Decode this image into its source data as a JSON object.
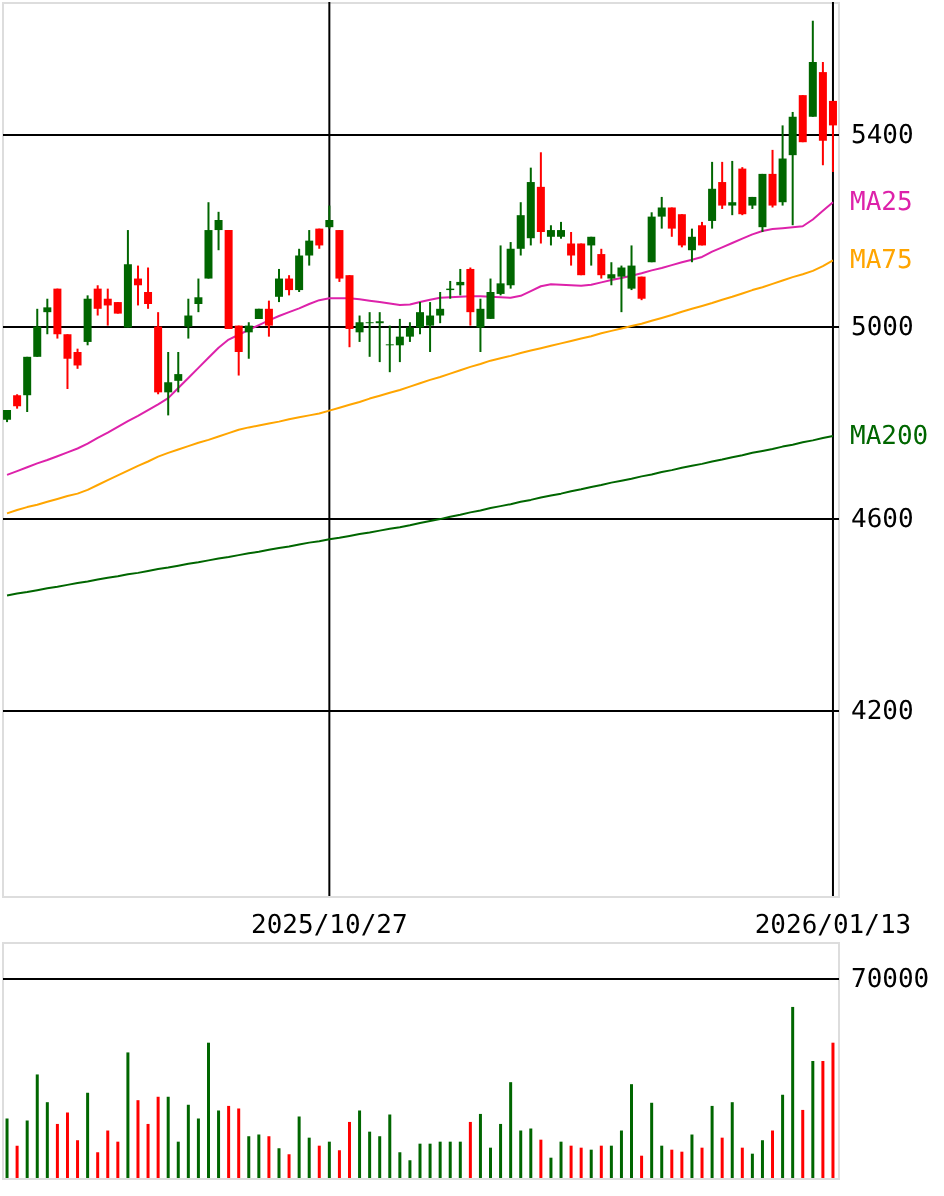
{
  "chart_data": [
    {
      "type": "candlestick",
      "categories": [
        null,
        null,
        null,
        null,
        null,
        null,
        null,
        null,
        null,
        null,
        null,
        null,
        null,
        null,
        null,
        null,
        null,
        null,
        null,
        null,
        null,
        null,
        null,
        null,
        null,
        null,
        null,
        null,
        null,
        null,
        null,
        null,
        "2025/10/27",
        null,
        null,
        null,
        null,
        null,
        null,
        null,
        null,
        null,
        null,
        null,
        null,
        null,
        null,
        null,
        null,
        null,
        null,
        null,
        null,
        null,
        null,
        null,
        null,
        null,
        null,
        null,
        null,
        null,
        null,
        null,
        null,
        null,
        null,
        null,
        null,
        null,
        null,
        null,
        null,
        null,
        null,
        null,
        null,
        null,
        null,
        null,
        null,
        null,
        "2026/01/13"
      ],
      "ohlc": [
        [
          4805,
          4825,
          4800,
          4825
        ],
        [
          4856,
          4858,
          4828,
          4833
        ],
        [
          4856,
          4936,
          4821,
          4936
        ],
        [
          4936,
          5036,
          4936,
          4999
        ],
        [
          5029,
          5057,
          4983,
          5039
        ],
        [
          5078,
          5078,
          4974,
          4983
        ],
        [
          4983,
          4983,
          4869,
          4932
        ],
        [
          4946,
          4953,
          4911,
          4918
        ],
        [
          4967,
          5064,
          4960,
          5057
        ],
        [
          5078,
          5085,
          5022,
          5036
        ],
        [
          5057,
          5078,
          5001,
          5043
        ],
        [
          5050,
          5050,
          5026,
          5026
        ],
        [
          4997,
          5200,
          4997,
          5129
        ],
        [
          5099,
          5126,
          5043,
          5085
        ],
        [
          5071,
          5122,
          5036,
          5046
        ],
        [
          4999,
          5029,
          4858,
          4862
        ],
        [
          4862,
          4946,
          4814,
          4883
        ],
        [
          4886,
          4946,
          4862,
          4900
        ],
        [
          4999,
          5057,
          4974,
          5022
        ],
        [
          5046,
          5099,
          5029,
          5060
        ],
        [
          5099,
          5258,
          5099,
          5200
        ],
        [
          5200,
          5238,
          5158,
          5221
        ],
        [
          5200,
          5200,
          4994,
          4994
        ],
        [
          5001,
          5001,
          4897,
          4946
        ],
        [
          4987,
          5008,
          4932,
          5001
        ],
        [
          5015,
          5036,
          5015,
          5036
        ],
        [
          5036,
          5053,
          4978,
          5001
        ],
        [
          5061,
          5119,
          5050,
          5099
        ],
        [
          5099,
          5106,
          5064,
          5075
        ],
        [
          5075,
          5161,
          5071,
          5147
        ],
        [
          5147,
          5200,
          5126,
          5178
        ],
        [
          5203,
          5203,
          5161,
          5168
        ],
        [
          5206,
          5251,
          5203,
          5221
        ],
        [
          5200,
          5200,
          5092,
          5099
        ],
        [
          5106,
          5106,
          4956,
          4994
        ],
        [
          4987,
          5022,
          4967,
          5008
        ],
        [
          5006,
          5029,
          4936,
          5008
        ],
        [
          5006,
          5029,
          4925,
          5010
        ],
        [
          4960,
          5001,
          4904,
          4962
        ],
        [
          4960,
          5015,
          4925,
          4978
        ],
        [
          4978,
          5008,
          4967,
          4997
        ],
        [
          4997,
          5050,
          4983,
          5029
        ],
        [
          5001,
          5050,
          4946,
          5022
        ],
        [
          5022,
          5071,
          5006,
          5036
        ],
        [
          5075,
          5094,
          5057,
          5078
        ],
        [
          5085,
          5119,
          5064,
          5092
        ],
        [
          5119,
          5122,
          5001,
          5029
        ],
        [
          4997,
          5057,
          4946,
          5036
        ],
        [
          5015,
          5099,
          5015,
          5071
        ],
        [
          5067,
          5168,
          5064,
          5089
        ],
        [
          5085,
          5175,
          5078,
          5161
        ],
        [
          5161,
          5258,
          5147,
          5231
        ],
        [
          5183,
          5330,
          5168,
          5300
        ],
        [
          5290,
          5362,
          5172,
          5196
        ],
        [
          5186,
          5210,
          5168,
          5200
        ],
        [
          5186,
          5217,
          5182,
          5200
        ],
        [
          5172,
          5196,
          5126,
          5147
        ],
        [
          5172,
          5172,
          5106,
          5106
        ],
        [
          5168,
          5186,
          5126,
          5186
        ],
        [
          5150,
          5161,
          5099,
          5106
        ],
        [
          5099,
          5133,
          5085,
          5108
        ],
        [
          5103,
          5126,
          5029,
          5122
        ],
        [
          5078,
          5168,
          5075,
          5126
        ],
        [
          5103,
          5103,
          5054,
          5057
        ],
        [
          5133,
          5237,
          5133,
          5228
        ],
        [
          5228,
          5269,
          5203,
          5247
        ],
        [
          5247,
          5247,
          5186,
          5203
        ],
        [
          5233,
          5233,
          5164,
          5168
        ],
        [
          5158,
          5203,
          5133,
          5186
        ],
        [
          5210,
          5217,
          5168,
          5168
        ],
        [
          5219,
          5342,
          5203,
          5286
        ],
        [
          5300,
          5342,
          5244,
          5251
        ],
        [
          5251,
          5344,
          5231,
          5258
        ],
        [
          5328,
          5331,
          5231,
          5233
        ],
        [
          5251,
          5269,
          5244,
          5269
        ],
        [
          5206,
          5317,
          5196,
          5317
        ],
        [
          5317,
          5367,
          5247,
          5251
        ],
        [
          5258,
          5418,
          5251,
          5349
        ],
        [
          5356,
          5446,
          5210,
          5436
        ],
        [
          5481,
          5481,
          5383,
          5383
        ],
        [
          5436,
          5636,
          5436,
          5550
        ],
        [
          5529,
          5550,
          5335,
          5386
        ],
        [
          5469,
          5469,
          5321,
          5418
        ]
      ],
      "colors": [
        "#006600",
        "#ff0000",
        "#006600",
        "#006600",
        "#006600",
        "#ff0000",
        "#ff0000",
        "#ff0000",
        "#006600",
        "#ff0000",
        "#ff0000",
        "#ff0000",
        "#006600",
        "#ff0000",
        "#ff0000",
        "#ff0000",
        "#006600",
        "#006600",
        "#006600",
        "#006600",
        "#006600",
        "#006600",
        "#ff0000",
        "#ff0000",
        "#006600",
        "#006600",
        "#ff0000",
        "#006600",
        "#ff0000",
        "#006600",
        "#006600",
        "#ff0000",
        "#006600",
        "#ff0000",
        "#ff0000",
        "#006600",
        "#006600",
        "#006600",
        "#006600",
        "#006600",
        "#006600",
        "#006600",
        "#006600",
        "#006600",
        "#006600",
        "#006600",
        "#ff0000",
        "#006600",
        "#006600",
        "#006600",
        "#006600",
        "#006600",
        "#006600",
        "#ff0000",
        "#006600",
        "#006600",
        "#ff0000",
        "#ff0000",
        "#006600",
        "#ff0000",
        "#006600",
        "#006600",
        "#006600",
        "#ff0000",
        "#006600",
        "#006600",
        "#ff0000",
        "#ff0000",
        "#006600",
        "#ff0000",
        "#006600",
        "#ff0000",
        "#006600",
        "#ff0000",
        "#006600",
        "#006600",
        "#ff0000",
        "#006600",
        "#006600",
        "#ff0000",
        "#006600",
        "#ff0000",
        "#ff0000"
      ],
      "series": [
        {
          "type": "line",
          "name": "MA25",
          "color": "#dd22aa",
          "values": [
            4690,
            4698,
            4706,
            4714,
            4721,
            4729,
            4737,
            4745,
            4755,
            4767,
            4778,
            4790,
            4802,
            4813,
            4825,
            4837,
            4850,
            4871,
            4892,
            4913,
            4934,
            4955,
            4972,
            4982,
            4992,
            5002,
            5012,
            5021,
            5029,
            5037,
            5046,
            5054,
            5058,
            5058,
            5058,
            5056,
            5053,
            5050,
            5047,
            5044,
            5045,
            5050,
            5055,
            5059,
            5060,
            5061,
            5062,
            5062,
            5061,
            5060,
            5059,
            5063,
            5073,
            5083,
            5087,
            5086,
            5085,
            5084,
            5086,
            5091,
            5096,
            5100,
            5105,
            5110,
            5116,
            5121,
            5127,
            5133,
            5138,
            5144,
            5155,
            5164,
            5173,
            5182,
            5191,
            5198,
            5202,
            5204,
            5206,
            5208,
            5222,
            5240,
            5258
          ]
        },
        {
          "type": "line",
          "name": "MA75",
          "color": "#ffa500",
          "values": [
            4610,
            4617,
            4623,
            4628,
            4634,
            4640,
            4646,
            4651,
            4659,
            4669,
            4679,
            4689,
            4699,
            4709,
            4718,
            4728,
            4736,
            4743,
            4750,
            4757,
            4763,
            4770,
            4777,
            4784,
            4789,
            4793,
            4797,
            4801,
            4806,
            4810,
            4814,
            4818,
            4824,
            4830,
            4836,
            4842,
            4849,
            4855,
            4861,
            4867,
            4874,
            4881,
            4888,
            4894,
            4901,
            4908,
            4915,
            4921,
            4928,
            4933,
            4938,
            4944,
            4949,
            4954,
            4959,
            4964,
            4969,
            4974,
            4979,
            4985,
            4990,
            4995,
            5000,
            5005,
            5011,
            5017,
            5023,
            5030,
            5036,
            5042,
            5048,
            5055,
            5061,
            5068,
            5075,
            5081,
            5088,
            5095,
            5102,
            5108,
            5115,
            5125,
            5137
          ]
        },
        {
          "type": "line",
          "name": "MA200",
          "color": "#006600",
          "values": [
            4439,
            4443,
            4446,
            4450,
            4454,
            4457,
            4461,
            4465,
            4468,
            4472,
            4476,
            4479,
            4483,
            4486,
            4490,
            4494,
            4497,
            4501,
            4505,
            4508,
            4512,
            4516,
            4519,
            4523,
            4527,
            4530,
            4534,
            4538,
            4541,
            4545,
            4549,
            4552,
            4556,
            4559,
            4563,
            4567,
            4570,
            4574,
            4578,
            4581,
            4585,
            4590,
            4594,
            4598,
            4603,
            4607,
            4612,
            4616,
            4621,
            4625,
            4629,
            4634,
            4638,
            4643,
            4647,
            4651,
            4656,
            4660,
            4665,
            4669,
            4674,
            4678,
            4682,
            4687,
            4691,
            4696,
            4700,
            4705,
            4709,
            4713,
            4718,
            4722,
            4727,
            4731,
            4736,
            4740,
            4744,
            4749,
            4753,
            4758,
            4762,
            4767,
            4771
          ]
        }
      ],
      "ylim": [
        3813,
        5675
      ],
      "yticks": [
        4200,
        4600,
        5000,
        5400
      ],
      "grid": true
    },
    {
      "type": "bar",
      "ylim": [
        0,
        82500
      ],
      "yticks": [
        70000
      ],
      "grid": "y",
      "categories": [
        null,
        null,
        null,
        null,
        null,
        null,
        null,
        null,
        null,
        null,
        null,
        null,
        null,
        null,
        null,
        null,
        null,
        null,
        null,
        null,
        null,
        null,
        null,
        null,
        null,
        null,
        null,
        null,
        null,
        null,
        null,
        null,
        null,
        null,
        null,
        null,
        null,
        null,
        null,
        null,
        null,
        null,
        null,
        null,
        null,
        null,
        null,
        null,
        null,
        null,
        null,
        null,
        null,
        null,
        null,
        null,
        null,
        null,
        null,
        null,
        null,
        null,
        null,
        null,
        null,
        null,
        null,
        null,
        null,
        null,
        null,
        null,
        null,
        null,
        null,
        null,
        null,
        null,
        null,
        null,
        null,
        null,
        null
      ],
      "values": [
        20800,
        11300,
        20100,
        36200,
        26500,
        18900,
        22900,
        13200,
        29800,
        9000,
        16600,
        12700,
        43900,
        27200,
        18900,
        28400,
        28400,
        12700,
        25600,
        20800,
        47300,
        23600,
        25200,
        24300,
        14600,
        15200,
        14600,
        10400,
        8300,
        21500,
        14100,
        11300,
        12700,
        9700,
        19600,
        23600,
        16200,
        14600,
        22200,
        9000,
        6200,
        12000,
        12000,
        12700,
        12700,
        12700,
        19600,
        22400,
        10600,
        18900,
        33500,
        16600,
        17300,
        13400,
        7100,
        12700,
        11300,
        10600,
        9900,
        11300,
        11300,
        16600,
        32800,
        7800,
        26300,
        11300,
        9900,
        9200,
        15200,
        10600,
        25200,
        14100,
        26500,
        10600,
        8500,
        13200,
        16600,
        29100,
        59800,
        23800,
        40900,
        40900,
        47300
      ],
      "colors": [
        "#006600",
        "#ff0000",
        "#006600",
        "#006600",
        "#006600",
        "#ff0000",
        "#ff0000",
        "#ff0000",
        "#006600",
        "#ff0000",
        "#ff0000",
        "#ff0000",
        "#006600",
        "#ff0000",
        "#ff0000",
        "#ff0000",
        "#006600",
        "#006600",
        "#006600",
        "#006600",
        "#006600",
        "#006600",
        "#ff0000",
        "#ff0000",
        "#006600",
        "#006600",
        "#ff0000",
        "#006600",
        "#ff0000",
        "#006600",
        "#006600",
        "#ff0000",
        "#006600",
        "#ff0000",
        "#ff0000",
        "#006600",
        "#006600",
        "#006600",
        "#006600",
        "#006600",
        "#006600",
        "#006600",
        "#006600",
        "#006600",
        "#006600",
        "#006600",
        "#ff0000",
        "#006600",
        "#006600",
        "#006600",
        "#006600",
        "#006600",
        "#006600",
        "#ff0000",
        "#006600",
        "#006600",
        "#ff0000",
        "#ff0000",
        "#006600",
        "#ff0000",
        "#006600",
        "#006600",
        "#006600",
        "#ff0000",
        "#006600",
        "#006600",
        "#ff0000",
        "#ff0000",
        "#006600",
        "#ff0000",
        "#006600",
        "#ff0000",
        "#006600",
        "#ff0000",
        "#006600",
        "#006600",
        "#ff0000",
        "#006600",
        "#006600",
        "#ff0000",
        "#006600",
        "#ff0000",
        "#ff0000"
      ]
    }
  ]
}
